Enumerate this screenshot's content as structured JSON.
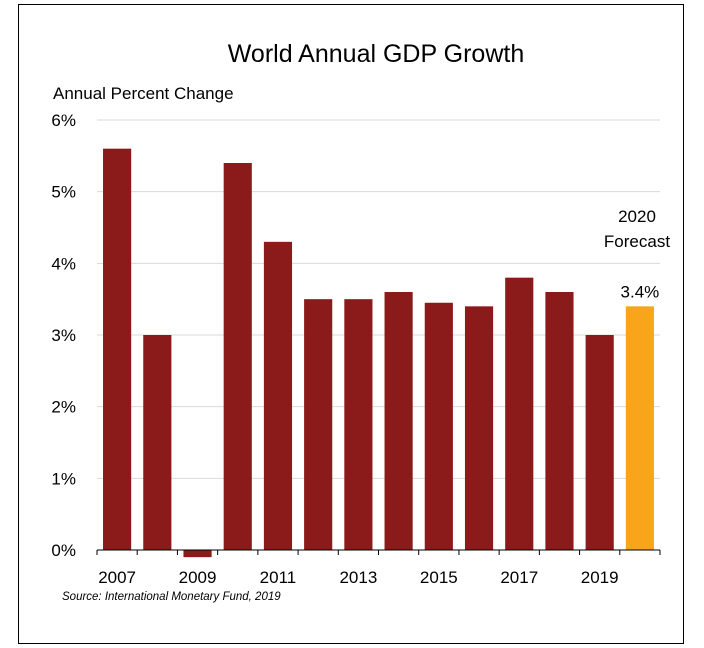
{
  "chart_data": {
    "type": "bar",
    "title": "World Annual GDP Growth",
    "ylabel": "Annual Percent Change",
    "xlabel": "",
    "categories": [
      "2007",
      "2008",
      "2009",
      "2010",
      "2011",
      "2012",
      "2013",
      "2014",
      "2015",
      "2016",
      "2017",
      "2018",
      "2019",
      "2020"
    ],
    "values": [
      5.6,
      3.0,
      -0.1,
      5.4,
      4.3,
      3.5,
      3.5,
      3.6,
      3.45,
      3.4,
      3.8,
      3.6,
      3.0,
      3.4
    ],
    "ylim": [
      0,
      6
    ],
    "yticks": [
      "0%",
      "1%",
      "2%",
      "3%",
      "4%",
      "5%",
      "6%"
    ],
    "xtick_labels": [
      "2007",
      "2009",
      "2011",
      "2013",
      "2015",
      "2017",
      "2019"
    ],
    "grid": true,
    "colors": {
      "bar": "#8b1a1a",
      "highlight": "#f9a51b",
      "grid": "#d9d9d9"
    },
    "highlight_index": 13,
    "forecast_label_line1": "2020",
    "forecast_label_line2": "Forecast",
    "forecast_value_label": "3.4%",
    "source": "Source:  International Monetary Fund, 2019"
  }
}
